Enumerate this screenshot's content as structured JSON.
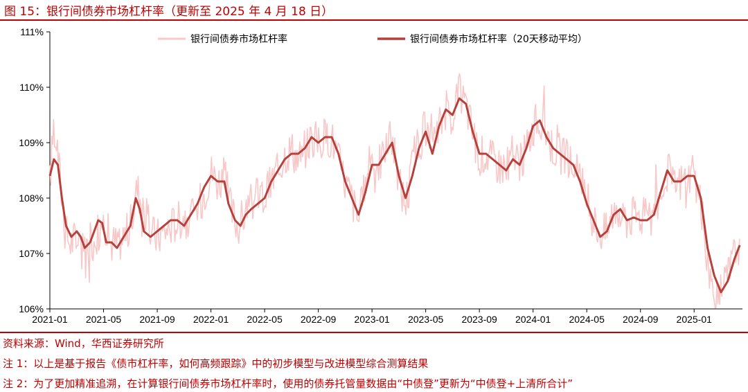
{
  "figure": {
    "title": "图 15：银行间债券市场杠杆率（更新至 2025 年 4 月 18 日）",
    "source": "资料来源：Wind，华西证券研究所",
    "note1": "注 1：以上是基于报告《债市杠杆率，如何高频跟踪》中的初步模型与改进模型综合测算结果",
    "note2": "注 2：为了更加精准追溯，在计算银行间债券市场杠杆率时，使用的债券托管量数据由“中债登”更新为“中债登+上清所合计”"
  },
  "colors": {
    "accent": "#c00000",
    "daily": "#f8c7c7",
    "ma20": "#b4413c",
    "axis": "#000000",
    "tick_text": "#000000"
  },
  "chart_data": {
    "type": "line",
    "title": "",
    "xlabel": "",
    "ylabel": "",
    "ylim": [
      106,
      111
    ],
    "y_ticks": [
      106,
      107,
      108,
      109,
      110,
      111
    ],
    "y_tick_labels": [
      "106%",
      "107%",
      "108%",
      "109%",
      "110%",
      "111%"
    ],
    "x_tick_labels": [
      "2021-01",
      "2021-05",
      "2021-09",
      "2022-01",
      "2022-05",
      "2022-09",
      "2023-01",
      "2023-05",
      "2023-09",
      "2024-01",
      "2024-05",
      "2024-09",
      "2025-01"
    ],
    "x_tick_months": [
      0,
      4,
      8,
      12,
      16,
      20,
      24,
      28,
      32,
      36,
      40,
      44,
      48
    ],
    "xlim_months": [
      0,
      51.6
    ],
    "grid": false,
    "legend_position": "top",
    "series": [
      {
        "name": "银行间债券市场杠杆率",
        "style": "thin-light",
        "anchors": [
          [
            0,
            108.3
          ],
          [
            0.3,
            109.4
          ],
          [
            0.6,
            108.8
          ],
          [
            0.9,
            108.0
          ],
          [
            1.2,
            107.4
          ],
          [
            1.5,
            107.2
          ],
          [
            2.0,
            107.3
          ],
          [
            2.5,
            107.1
          ],
          [
            3.0,
            107.2
          ],
          [
            3.5,
            107.3
          ],
          [
            3.9,
            107.6
          ],
          [
            4.2,
            107.5
          ],
          [
            4.5,
            107.2
          ],
          [
            5.0,
            107.2
          ],
          [
            5.5,
            107.3
          ],
          [
            6.0,
            107.5
          ],
          [
            6.5,
            108.2
          ],
          [
            7.0,
            107.8
          ],
          [
            7.5,
            107.4
          ],
          [
            8.0,
            107.3
          ],
          [
            8.5,
            107.4
          ],
          [
            9.0,
            107.5
          ],
          [
            9.5,
            107.6
          ],
          [
            10.0,
            107.7
          ],
          [
            10.5,
            107.6
          ],
          [
            11.0,
            107.8
          ],
          [
            11.5,
            108.1
          ],
          [
            12.0,
            108.5
          ],
          [
            12.5,
            108.3
          ],
          [
            13.0,
            108.4
          ],
          [
            13.5,
            107.8
          ],
          [
            14.0,
            107.5
          ],
          [
            14.5,
            107.7
          ],
          [
            15.0,
            107.9
          ],
          [
            15.5,
            108.1
          ],
          [
            16.0,
            108.0
          ],
          [
            16.5,
            108.3
          ],
          [
            17.0,
            108.5
          ],
          [
            17.5,
            108.8
          ],
          [
            18.0,
            108.9
          ],
          [
            18.5,
            108.7
          ],
          [
            19.0,
            108.9
          ],
          [
            19.5,
            109.1
          ],
          [
            20.0,
            109.0
          ],
          [
            20.5,
            109.1
          ],
          [
            21.0,
            109.1
          ],
          [
            21.5,
            108.7
          ],
          [
            22.0,
            108.3
          ],
          [
            22.5,
            108.0
          ],
          [
            23.0,
            107.6
          ],
          [
            23.5,
            108.2
          ],
          [
            24.0,
            108.8
          ],
          [
            24.5,
            108.6
          ],
          [
            25.0,
            108.9
          ],
          [
            25.5,
            109.1
          ],
          [
            26.0,
            108.3
          ],
          [
            26.5,
            107.9
          ],
          [
            27.0,
            108.6
          ],
          [
            27.5,
            109.0
          ],
          [
            28.0,
            109.2
          ],
          [
            28.5,
            108.8
          ],
          [
            29.0,
            109.3
          ],
          [
            29.5,
            109.6
          ],
          [
            30.0,
            109.5
          ],
          [
            30.5,
            109.9
          ],
          [
            31.0,
            109.7
          ],
          [
            31.5,
            109.2
          ],
          [
            32.0,
            108.8
          ],
          [
            32.5,
            108.8
          ],
          [
            33.0,
            108.7
          ],
          [
            33.5,
            108.6
          ],
          [
            34.0,
            108.6
          ],
          [
            34.5,
            108.8
          ],
          [
            35.0,
            108.6
          ],
          [
            35.5,
            108.9
          ],
          [
            36.0,
            109.3
          ],
          [
            36.5,
            109.4
          ],
          [
            37.0,
            109.2
          ],
          [
            37.5,
            108.9
          ],
          [
            38.0,
            108.8
          ],
          [
            38.5,
            108.7
          ],
          [
            39.0,
            108.6
          ],
          [
            39.5,
            108.3
          ],
          [
            40.0,
            108.0
          ],
          [
            40.5,
            107.6
          ],
          [
            41.0,
            107.4
          ],
          [
            41.5,
            107.4
          ],
          [
            42.0,
            107.8
          ],
          [
            42.5,
            107.8
          ],
          [
            43.0,
            107.6
          ],
          [
            43.5,
            107.7
          ],
          [
            44.0,
            107.7
          ],
          [
            44.5,
            107.6
          ],
          [
            45.0,
            107.7
          ],
          [
            45.5,
            108.1
          ],
          [
            46.0,
            108.5
          ],
          [
            46.5,
            108.2
          ],
          [
            47.0,
            108.3
          ],
          [
            47.5,
            108.4
          ],
          [
            48.0,
            108.4
          ],
          [
            48.5,
            107.9
          ],
          [
            49.0,
            106.8
          ],
          [
            49.5,
            106.2
          ],
          [
            49.8,
            106.1
          ],
          [
            50.0,
            106.3
          ],
          [
            50.5,
            106.6
          ],
          [
            51.0,
            107.0
          ],
          [
            51.4,
            107.2
          ]
        ]
      },
      {
        "name": "银行间债券市场杠杆率（20天移动平均）",
        "style": "thick-dark",
        "anchors": [
          [
            0,
            108.4
          ],
          [
            0.3,
            108.7
          ],
          [
            0.6,
            108.6
          ],
          [
            0.9,
            108.0
          ],
          [
            1.2,
            107.5
          ],
          [
            1.6,
            107.3
          ],
          [
            2.0,
            107.4
          ],
          [
            2.3,
            107.3
          ],
          [
            2.6,
            107.1
          ],
          [
            3.0,
            107.2
          ],
          [
            3.3,
            107.4
          ],
          [
            3.6,
            107.6
          ],
          [
            3.9,
            107.55
          ],
          [
            4.2,
            107.2
          ],
          [
            4.6,
            107.2
          ],
          [
            5.0,
            107.1
          ],
          [
            5.5,
            107.3
          ],
          [
            6.0,
            107.5
          ],
          [
            6.4,
            108.0
          ],
          [
            6.7,
            107.8
          ],
          [
            7.0,
            107.4
          ],
          [
            7.5,
            107.3
          ],
          [
            8.0,
            107.4
          ],
          [
            8.5,
            107.5
          ],
          [
            9.0,
            107.6
          ],
          [
            9.5,
            107.6
          ],
          [
            10.0,
            107.5
          ],
          [
            10.5,
            107.7
          ],
          [
            11.0,
            107.9
          ],
          [
            11.5,
            108.2
          ],
          [
            12.0,
            108.4
          ],
          [
            12.5,
            108.3
          ],
          [
            13.0,
            108.3
          ],
          [
            13.3,
            107.9
          ],
          [
            13.8,
            107.6
          ],
          [
            14.2,
            107.5
          ],
          [
            14.6,
            107.7
          ],
          [
            15.0,
            107.8
          ],
          [
            15.5,
            107.9
          ],
          [
            16.0,
            108.0
          ],
          [
            16.5,
            108.3
          ],
          [
            17.0,
            108.5
          ],
          [
            17.5,
            108.7
          ],
          [
            18.0,
            108.8
          ],
          [
            18.5,
            108.8
          ],
          [
            19.0,
            108.9
          ],
          [
            19.5,
            109.1
          ],
          [
            20.0,
            109.0
          ],
          [
            20.5,
            109.1
          ],
          [
            21.0,
            109.1
          ],
          [
            21.5,
            108.8
          ],
          [
            22.0,
            108.3
          ],
          [
            22.5,
            108.0
          ],
          [
            23.0,
            107.7
          ],
          [
            23.5,
            108.1
          ],
          [
            24.0,
            108.6
          ],
          [
            24.5,
            108.6
          ],
          [
            25.0,
            108.8
          ],
          [
            25.5,
            109.0
          ],
          [
            26.0,
            108.4
          ],
          [
            26.5,
            108.0
          ],
          [
            27.0,
            108.4
          ],
          [
            27.5,
            108.9
          ],
          [
            28.0,
            109.2
          ],
          [
            28.5,
            108.8
          ],
          [
            29.0,
            109.3
          ],
          [
            29.5,
            109.6
          ],
          [
            30.0,
            109.5
          ],
          [
            30.5,
            109.8
          ],
          [
            31.0,
            109.7
          ],
          [
            31.5,
            109.2
          ],
          [
            32.0,
            108.8
          ],
          [
            32.5,
            108.8
          ],
          [
            33.0,
            108.7
          ],
          [
            33.5,
            108.6
          ],
          [
            34.0,
            108.5
          ],
          [
            34.5,
            108.7
          ],
          [
            35.0,
            108.6
          ],
          [
            35.5,
            108.9
          ],
          [
            36.0,
            109.3
          ],
          [
            36.5,
            109.4
          ],
          [
            37.0,
            109.1
          ],
          [
            37.5,
            108.9
          ],
          [
            38.0,
            108.8
          ],
          [
            38.5,
            108.7
          ],
          [
            39.0,
            108.6
          ],
          [
            39.5,
            108.3
          ],
          [
            40.0,
            107.9
          ],
          [
            40.5,
            107.6
          ],
          [
            41.0,
            107.3
          ],
          [
            41.5,
            107.4
          ],
          [
            42.0,
            107.7
          ],
          [
            42.5,
            107.8
          ],
          [
            43.0,
            107.6
          ],
          [
            43.5,
            107.65
          ],
          [
            44.0,
            107.6
          ],
          [
            44.5,
            107.6
          ],
          [
            45.0,
            107.7
          ],
          [
            45.5,
            108.1
          ],
          [
            46.0,
            108.5
          ],
          [
            46.5,
            108.3
          ],
          [
            47.0,
            108.3
          ],
          [
            47.5,
            108.4
          ],
          [
            48.0,
            108.4
          ],
          [
            48.5,
            108.0
          ],
          [
            49.0,
            107.1
          ],
          [
            49.5,
            106.6
          ],
          [
            50.0,
            106.3
          ],
          [
            50.5,
            106.5
          ],
          [
            51.0,
            106.9
          ],
          [
            51.4,
            107.15
          ]
        ]
      }
    ]
  }
}
